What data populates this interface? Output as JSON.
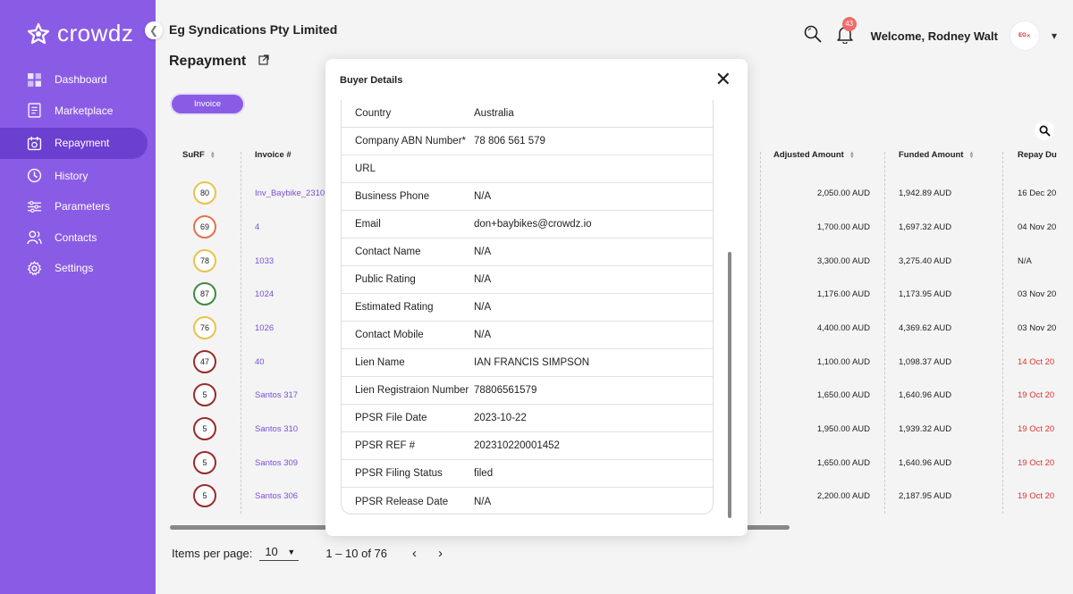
{
  "brand": {
    "name": "crowdz"
  },
  "sidebar": {
    "items": [
      {
        "label": "Dashboard",
        "icon": "grid-icon",
        "active": false
      },
      {
        "label": "Marketplace",
        "icon": "document-icon",
        "active": false
      },
      {
        "label": "Repayment",
        "icon": "calendar-icon",
        "active": true
      },
      {
        "label": "History",
        "icon": "history-icon",
        "active": false
      },
      {
        "label": "Parameters",
        "icon": "sliders-icon",
        "active": false
      },
      {
        "label": "Contacts",
        "icon": "users-icon",
        "active": false
      },
      {
        "label": "Settings",
        "icon": "gear-icon",
        "active": false
      }
    ]
  },
  "header": {
    "company": "Eg Syndications Pty Limited",
    "page_title": "Repayment",
    "notifications": "43",
    "welcome": "Welcome, Rodney Walt",
    "avatar_text": "EG"
  },
  "filter": {
    "chip_label": "Invoice"
  },
  "table": {
    "columns": {
      "surf": "SuRF",
      "invoice": "Invoice #",
      "adjusted": "Adjusted Amount",
      "funded": "Funded Amount",
      "repay": "Repay Du"
    },
    "rows": [
      {
        "surf": "80",
        "color": "#e9c24a",
        "invoice": "Inv_Baybike_2310",
        "adjusted": "2,050.00 AUD",
        "funded": "1,942.89 AUD",
        "repay": "16 Dec 20",
        "late": false
      },
      {
        "surf": "69",
        "color": "#e8704a",
        "invoice": "4",
        "adjusted": "1,700.00 AUD",
        "funded": "1,697.32 AUD",
        "repay": "04 Nov 20",
        "late": false
      },
      {
        "surf": "78",
        "color": "#e9c24a",
        "invoice": "1033",
        "adjusted": "3,300.00 AUD",
        "funded": "3,275.40 AUD",
        "repay": "N/A",
        "late": false
      },
      {
        "surf": "87",
        "color": "#3f8a3f",
        "invoice": "1024",
        "adjusted": "1,176.00 AUD",
        "funded": "1,173.95 AUD",
        "repay": "03 Nov 20",
        "late": false
      },
      {
        "surf": "76",
        "color": "#e9c24a",
        "invoice": "1026",
        "adjusted": "4,400.00 AUD",
        "funded": "4,369.62 AUD",
        "repay": "03 Nov 20",
        "late": false
      },
      {
        "surf": "47",
        "color": "#9b2a2a",
        "invoice": "40",
        "adjusted": "1,100.00 AUD",
        "funded": "1,098.37 AUD",
        "repay": "14 Oct 20",
        "late": true
      },
      {
        "surf": "5",
        "color": "#9b2a2a",
        "invoice": "Santos 317",
        "adjusted": "1,650.00 AUD",
        "funded": "1,640.96 AUD",
        "repay": "19 Oct 20",
        "late": true
      },
      {
        "surf": "5",
        "color": "#9b2a2a",
        "invoice": "Santos 310",
        "adjusted": "1,950.00 AUD",
        "funded": "1,939.32 AUD",
        "repay": "19 Oct 20",
        "late": true
      },
      {
        "surf": "5",
        "color": "#9b2a2a",
        "invoice": "Santos 309",
        "adjusted": "1,650.00 AUD",
        "funded": "1,640.96 AUD",
        "repay": "19 Oct 20",
        "late": true
      },
      {
        "surf": "5",
        "color": "#9b2a2a",
        "invoice": "Santos 306",
        "adjusted": "2,200.00 AUD",
        "funded": "2,187.95 AUD",
        "repay": "19 Oct 20",
        "late": true
      }
    ]
  },
  "pagination": {
    "items_per_page_label": "Items per page:",
    "items_per_page": "10",
    "range": "1 – 10 of 76",
    "prev": "‹",
    "next": "›"
  },
  "modal": {
    "title": "Buyer Details",
    "close": "✕",
    "fields": [
      {
        "label": "Country",
        "value": "Australia"
      },
      {
        "label": "Company ABN Number*",
        "value": "78 806 561 579"
      },
      {
        "label": "URL",
        "value": ""
      },
      {
        "label": "Business Phone",
        "value": "N/A"
      },
      {
        "label": "Email",
        "value": "don+baybikes@crowdz.io"
      },
      {
        "label": "Contact Name",
        "value": "N/A"
      },
      {
        "label": "Public Rating",
        "value": "N/A"
      },
      {
        "label": "Estimated Rating",
        "value": "N/A"
      },
      {
        "label": "Contact Mobile",
        "value": "N/A"
      },
      {
        "label": "Lien Name",
        "value": "IAN FRANCIS SIMPSON"
      },
      {
        "label": "Lien Registraion Number",
        "value": "78806561579"
      },
      {
        "label": "PPSR File Date",
        "value": "2023-10-22"
      },
      {
        "label": "PPSR REF #",
        "value": "202310220001452"
      },
      {
        "label": "PPSR Filing Status",
        "value": "filed"
      },
      {
        "label": "PPSR Release Date",
        "value": "N/A"
      }
    ]
  }
}
